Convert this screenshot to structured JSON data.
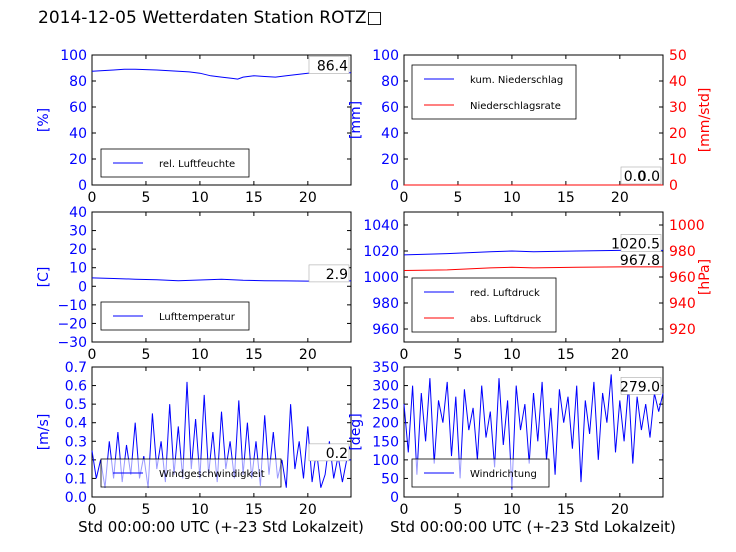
{
  "figure": {
    "title": "2014-12-05 Wetterdaten Station ROTZ□",
    "xlabel": "Std 00:00:00 UTC (+-23 Std Lokalzeit)"
  },
  "colors": {
    "primary": "#0000ff",
    "secondary": "#ff0000",
    "axis": "#000000"
  },
  "chart_data": [
    {
      "id": "humidity",
      "type": "line",
      "xlim": [
        0,
        24
      ],
      "ylim": [
        0,
        100
      ],
      "xticks": [
        "0",
        "5",
        "10",
        "15",
        "20"
      ],
      "yticks": [
        "0",
        "20",
        "40",
        "60",
        "80",
        "100"
      ],
      "ylabel": "[%]",
      "grid": false,
      "legend_position": "lower-left",
      "last_value_label": "86.4",
      "series": [
        {
          "name": "rel. Luftfeuchte",
          "color": "#0000ff",
          "x": [
            0,
            1,
            2,
            3,
            4,
            5,
            6,
            7,
            8,
            9,
            10,
            11,
            12,
            12.5,
            13,
            13.5,
            14,
            15,
            16,
            17,
            18,
            19,
            20,
            21,
            22,
            23,
            24
          ],
          "y": [
            87.5,
            88,
            88.5,
            89,
            89,
            88.8,
            88.5,
            88,
            87.5,
            87,
            86,
            84,
            83,
            82.5,
            82,
            81.5,
            83,
            84,
            83.5,
            83,
            84,
            85,
            86,
            86.5,
            86.4,
            86.4,
            86.4
          ]
        }
      ]
    },
    {
      "id": "precip",
      "type": "line",
      "xlim": [
        0,
        24
      ],
      "ylim": [
        0,
        100
      ],
      "xticks": [
        "0",
        "5",
        "10",
        "15",
        "20"
      ],
      "yticks": [
        "0",
        "20",
        "40",
        "60",
        "80",
        "100"
      ],
      "ylabel": "[mm]",
      "y2lim": [
        0,
        50
      ],
      "y2ticks": [
        "0",
        "10",
        "20",
        "30",
        "40",
        "50"
      ],
      "y2label": "[mm/std]",
      "grid": false,
      "legend_position": "upper-left",
      "last_value_label": "0.0",
      "last_value_label_2": "0.0",
      "series": [
        {
          "name": "kum. Niederschlag",
          "color": "#0000ff",
          "x": [
            0,
            24
          ],
          "y": [
            0,
            0
          ]
        },
        {
          "name": "Niederschlagsrate",
          "color": "#ff0000",
          "axis": "right",
          "x": [
            0,
            24
          ],
          "y": [
            0,
            0
          ]
        }
      ]
    },
    {
      "id": "temperature",
      "type": "line",
      "xlim": [
        0,
        24
      ],
      "ylim": [
        -30,
        40
      ],
      "xticks": [
        "0",
        "5",
        "10",
        "15",
        "20"
      ],
      "yticks": [
        "−30",
        "−20",
        "−10",
        "0",
        "10",
        "20",
        "30",
        "40"
      ],
      "ylabel": "[C]",
      "grid": false,
      "legend_position": "lower-left",
      "last_value_label": "2.9",
      "series": [
        {
          "name": "Lufttemperatur",
          "color": "#0000ff",
          "x": [
            0,
            2,
            4,
            6,
            8,
            10,
            12,
            14,
            16,
            18,
            20,
            22,
            24
          ],
          "y": [
            4.5,
            4.2,
            3.8,
            3.5,
            3.0,
            3.4,
            3.8,
            3.2,
            3.0,
            2.9,
            2.8,
            2.9,
            2.9
          ]
        }
      ]
    },
    {
      "id": "pressure",
      "type": "line",
      "xlim": [
        0,
        24
      ],
      "ylim": [
        950,
        1050
      ],
      "xticks": [
        "0",
        "5",
        "10",
        "15",
        "20"
      ],
      "yticks": [
        "960",
        "980",
        "1000",
        "1020",
        "1040"
      ],
      "y2lim": [
        910,
        1010
      ],
      "y2ticks": [
        "920",
        "940",
        "960",
        "980",
        "1000"
      ],
      "y2label": "[hPa]",
      "grid": false,
      "legend_position": "lower-left",
      "last_value_label": "1020.5",
      "last_value_label_2": "967.8",
      "series": [
        {
          "name": "red. Luftdruck",
          "color": "#0000ff",
          "x": [
            0,
            4,
            8,
            10,
            12,
            16,
            20,
            24
          ],
          "y": [
            1017,
            1018,
            1019.5,
            1020,
            1019.5,
            1020,
            1020.5,
            1020.5
          ]
        },
        {
          "name": "abs. Luftdruck",
          "color": "#ff0000",
          "axis": "right",
          "x": [
            0,
            4,
            8,
            10,
            12,
            16,
            20,
            24
          ],
          "y": [
            965,
            965.5,
            967,
            967.5,
            967,
            967.5,
            967.8,
            967.8
          ]
        }
      ]
    },
    {
      "id": "wind_speed",
      "type": "line",
      "xlim": [
        0,
        24
      ],
      "ylim": [
        0,
        0.7
      ],
      "xticks": [
        "0",
        "5",
        "10",
        "15",
        "20"
      ],
      "yticks": [
        "0.0",
        "0.1",
        "0.2",
        "0.3",
        "0.4",
        "0.5",
        "0.6",
        "0.7"
      ],
      "ylabel": "[m/s]",
      "grid": false,
      "legend_position": "lower-left",
      "last_value_label": "0.2",
      "series": [
        {
          "name": "Windgeschwindigkeit",
          "color": "#0000ff",
          "x": [
            0,
            0.4,
            0.8,
            1.2,
            1.6,
            2,
            2.4,
            2.8,
            3.2,
            3.6,
            4,
            4.4,
            4.8,
            5.2,
            5.6,
            6,
            6.4,
            6.8,
            7.2,
            7.6,
            8,
            8.4,
            8.8,
            9.2,
            9.6,
            10,
            10.4,
            10.8,
            11.2,
            11.6,
            12,
            12.4,
            12.8,
            13.2,
            13.6,
            14,
            14.4,
            14.8,
            15.2,
            15.6,
            16,
            16.4,
            16.8,
            17.2,
            17.6,
            18,
            18.4,
            18.8,
            19.2,
            19.6,
            20,
            20.4,
            20.8,
            21.2,
            21.6,
            22,
            22.4,
            22.8,
            23.2,
            23.6,
            24
          ],
          "y": [
            0.25,
            0.1,
            0.2,
            0.05,
            0.3,
            0.1,
            0.35,
            0.08,
            0.28,
            0.12,
            0.4,
            0.1,
            0.22,
            0.05,
            0.45,
            0.15,
            0.3,
            0.08,
            0.5,
            0.12,
            0.38,
            0.1,
            0.62,
            0.15,
            0.42,
            0.1,
            0.55,
            0.12,
            0.35,
            0.08,
            0.46,
            0.15,
            0.3,
            0.1,
            0.52,
            0.12,
            0.4,
            0.1,
            0.3,
            0.06,
            0.44,
            0.12,
            0.35,
            0.1,
            0.2,
            0.05,
            0.5,
            0.15,
            0.3,
            0.1,
            0.38,
            0.08,
            0.25,
            0.05,
            0.12,
            0.3,
            0.1,
            0.22,
            0.08,
            0.2,
            0.2
          ]
        }
      ]
    },
    {
      "id": "wind_dir",
      "type": "line",
      "xlim": [
        0,
        24
      ],
      "ylim": [
        0,
        350
      ],
      "xticks": [
        "0",
        "5",
        "10",
        "15",
        "20"
      ],
      "yticks": [
        "0",
        "50",
        "100",
        "150",
        "200",
        "250",
        "300",
        "350"
      ],
      "ylabel": "[deg]",
      "grid": false,
      "legend_position": "lower-left",
      "last_value_label": "279.0",
      "series": [
        {
          "name": "Windrichtung",
          "color": "#0000ff",
          "x": [
            0,
            0.4,
            0.8,
            1.2,
            1.6,
            2,
            2.4,
            2.8,
            3.2,
            3.6,
            4,
            4.4,
            4.8,
            5.2,
            5.6,
            6,
            6.4,
            6.8,
            7.2,
            7.6,
            8,
            8.4,
            8.8,
            9.2,
            9.6,
            10,
            10.4,
            10.8,
            11.2,
            11.6,
            12,
            12.4,
            12.8,
            13.2,
            13.6,
            14,
            14.4,
            14.8,
            15.2,
            15.6,
            16,
            16.4,
            16.8,
            17.2,
            17.6,
            18,
            18.4,
            18.8,
            19.2,
            19.6,
            20,
            20.4,
            20.8,
            21.2,
            21.6,
            22,
            22.4,
            22.8,
            23.2,
            23.6,
            24
          ],
          "y": [
            250,
            120,
            300,
            60,
            280,
            150,
            320,
            90,
            260,
            200,
            310,
            110,
            270,
            50,
            290,
            180,
            240,
            100,
            300,
            160,
            230,
            80,
            320,
            140,
            260,
            20,
            300,
            180,
            250,
            90,
            280,
            150,
            310,
            100,
            240,
            60,
            290,
            200,
            270,
            130,
            300,
            40,
            260,
            170,
            310,
            100,
            280,
            200,
            330,
            120,
            260,
            150,
            300,
            90,
            270,
            180,
            250,
            160,
            279,
            230,
            279
          ]
        }
      ]
    }
  ]
}
